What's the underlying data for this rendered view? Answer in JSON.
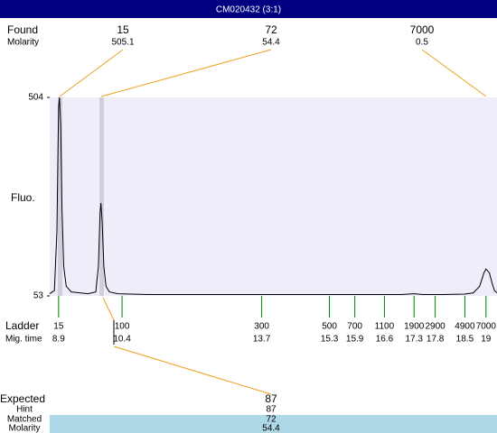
{
  "header": {
    "title": "CM020432 (3:1)"
  },
  "found": {
    "label": "Found",
    "molarity_label": "Molarity",
    "peaks": [
      {
        "size": 15,
        "molarity": 505.1
      },
      {
        "size": 72,
        "molarity": 54.4
      },
      {
        "size": 7000,
        "molarity": 0.5
      }
    ]
  },
  "chart_data": {
    "type": "line",
    "ylabel": "Fluo.",
    "color": "#000000",
    "x": [
      8.69,
      8.8,
      8.86,
      8.9,
      8.92,
      8.95,
      8.98,
      9.02,
      9.08,
      9.2,
      9.4,
      9.6,
      9.78,
      9.84,
      9.88,
      9.9,
      9.93,
      9.97,
      10.02,
      10.1,
      10.3,
      11,
      12,
      13,
      14,
      15,
      16,
      17,
      17.3,
      17.5,
      18,
      18.5,
      18.7,
      18.85,
      18.95,
      19.0,
      19.08,
      19.15,
      19.2,
      19.26
    ],
    "values": [
      58,
      65,
      200,
      480,
      504,
      440,
      250,
      120,
      75,
      62,
      60,
      58,
      62,
      120,
      240,
      264,
      220,
      120,
      75,
      62,
      58,
      56,
      56,
      56,
      56,
      56,
      56,
      56,
      58,
      56,
      56,
      57,
      60,
      75,
      105,
      114,
      105,
      80,
      65,
      60
    ],
    "xlim": [
      8.69,
      19.26
    ],
    "ylim": [
      53,
      504
    ],
    "yticks": [
      53,
      504
    ]
  },
  "ladder": {
    "label": "Ladder",
    "mig_label": "Mig. time",
    "sizes": [
      15,
      100,
      300,
      500,
      700,
      1100,
      1900,
      2900,
      4900,
      7000
    ],
    "mig_times": [
      8.9,
      10.4,
      13.7,
      15.3,
      15.9,
      16.6,
      17.3,
      17.8,
      18.5,
      19
    ]
  },
  "expected": {
    "label": "Expected",
    "value": 87,
    "hint_label": "Hint",
    "hint": 87,
    "matched_label": "Matched",
    "matched": 72,
    "molarity_label": "Molarity",
    "molarity": 54.4
  }
}
